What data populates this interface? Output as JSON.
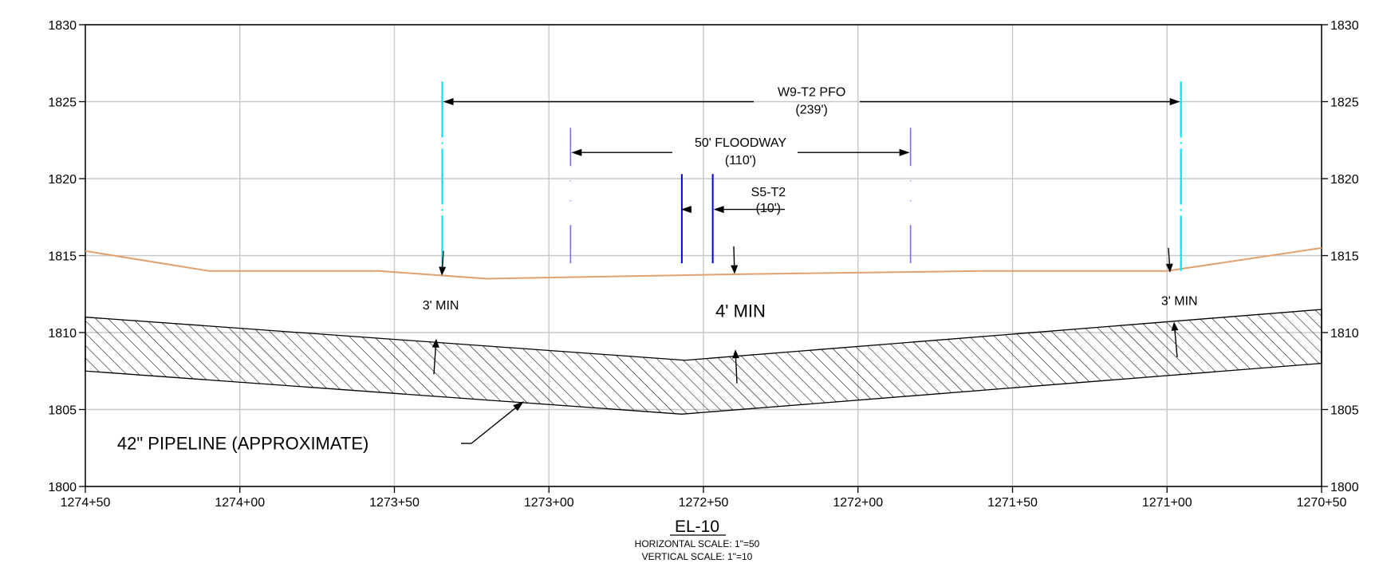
{
  "drawing": {
    "title": "EL-10",
    "horizontal_scale": "HORIZONTAL SCALE: 1\"=50",
    "vertical_scale": "VERTICAL SCALE: 1\"=10"
  },
  "colors": {
    "grid": "#c8c8c8",
    "ground": "#e0a070",
    "wetland_boundary": "#00e5ee",
    "floodway_boundary": "#7a6cf0",
    "stream_bank": "#0000dd",
    "pipeline": "#000000"
  },
  "chart_data": {
    "type": "line",
    "xlabel": "",
    "ylabel": "",
    "x_reversed": true,
    "xlim": [
      127050,
      127450
    ],
    "ylim": [
      1800,
      1830
    ],
    "x_ticks": [
      127450,
      127400,
      127350,
      127300,
      127250,
      127200,
      127150,
      127100,
      127050
    ],
    "x_tick_labels": [
      "1274+50",
      "1274+00",
      "1273+50",
      "1273+00",
      "1272+50",
      "1272+00",
      "1271+50",
      "1271+00",
      "1270+50"
    ],
    "y_ticks": [
      1800,
      1805,
      1810,
      1815,
      1820,
      1825,
      1830
    ],
    "y_tick_labels": [
      "1800",
      "1805",
      "1810",
      "1815",
      "1820",
      "1825",
      "1830"
    ],
    "grid": true,
    "series": [
      {
        "key": "ground",
        "x": [
          127450,
          127410,
          127355,
          127320,
          127235,
          127160,
          127100,
          127050
        ],
        "y": [
          1815.3,
          1814.0,
          1814.0,
          1813.5,
          1813.8,
          1814.0,
          1814.0,
          1815.5
        ]
      },
      {
        "key": "pipe_top",
        "x": [
          127450,
          127256,
          127050
        ],
        "y": [
          1811.0,
          1808.2,
          1811.5
        ]
      },
      {
        "key": "pipe_bottom",
        "x": [
          127450,
          127257,
          127050
        ],
        "y": [
          1807.5,
          1804.7,
          1808.0
        ]
      }
    ],
    "boundaries": [
      {
        "key": "W9-T2 PFO",
        "x": [
          127334.5,
          127095.5
        ],
        "y_range": [
          1814.0,
          1826.3
        ],
        "color_key": "wetland_boundary"
      },
      {
        "key": "50' FLOODWAY",
        "x": [
          127293,
          127183
        ],
        "y_range": [
          1814.5,
          1823.3
        ],
        "color_key": "floodway_boundary"
      },
      {
        "key": "S5-T2",
        "x": [
          127257,
          127247
        ],
        "y_range": [
          1814.5,
          1820.3
        ],
        "color_key": "stream_bank"
      }
    ],
    "annotations": [
      {
        "key": "wetland",
        "lines": [
          "W9-T2 PFO",
          "(239')"
        ],
        "x": 127215,
        "y": 1825.0
      },
      {
        "key": "floodway",
        "lines": [
          "50' FLOODWAY",
          "(110')"
        ],
        "x": 127238,
        "y": 1821.7
      },
      {
        "key": "stream",
        "lines": [
          "S5-T2",
          "(10')"
        ],
        "x": 127229,
        "y": 1818.6
      },
      {
        "key": "cover_left",
        "text": "3' MIN",
        "x": 127335,
        "y": 1811.5
      },
      {
        "key": "cover_center",
        "text": "4' MIN",
        "x": 127238,
        "y": 1811.0
      },
      {
        "key": "cover_right",
        "text": "3' MIN",
        "x": 127096,
        "y": 1811.8
      },
      {
        "key": "pipeline",
        "text": "42\" PIPELINE (APPROXIMATE)",
        "x": 127399,
        "y": 1802.4
      }
    ]
  }
}
